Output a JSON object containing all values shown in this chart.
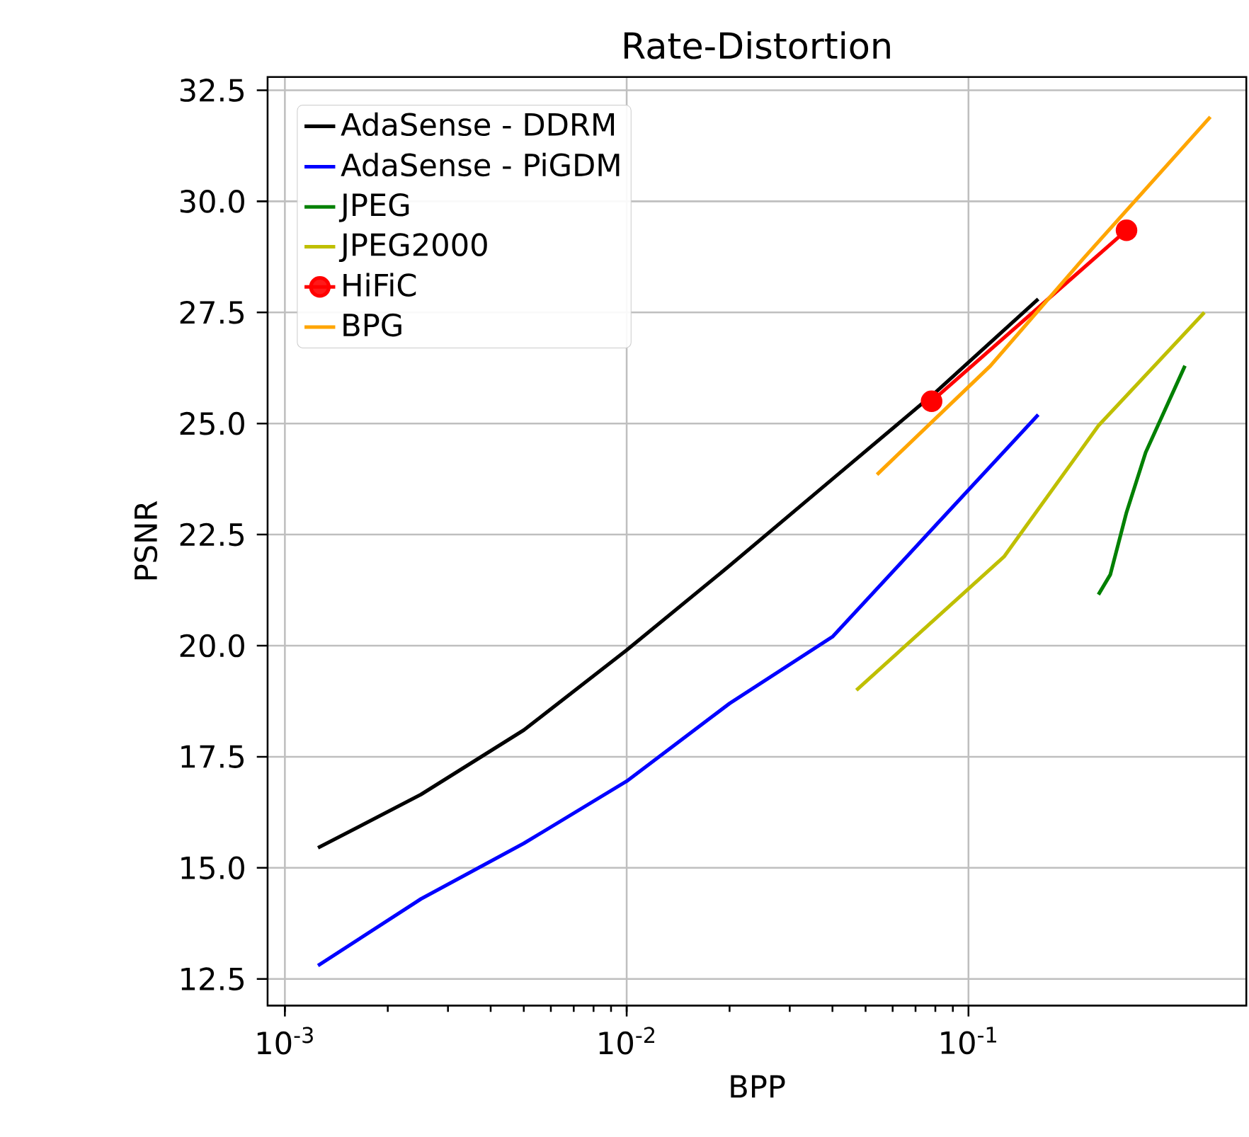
{
  "chart_data": {
    "type": "line",
    "title": "Rate-Distortion",
    "xlabel": "BPP",
    "ylabel": "PSNR",
    "log": "x",
    "grid": true,
    "legend": "top left",
    "line_style": "solid",
    "xlim": [
      0.00089,
      0.65
    ],
    "ylim": [
      11.9,
      32.8
    ],
    "xticks": [
      {
        "value": 0.001,
        "label": "10$^{-3}$"
      },
      {
        "value": 0.01,
        "label": "10$^{-2}$"
      },
      {
        "value": 0.1,
        "label": "10$^{-1}$"
      }
    ],
    "yticks": [
      12.5,
      {
        "value": 15,
        "label": "15.0"
      },
      17.5,
      {
        "value": 20,
        "label": "20.0"
      },
      22.5,
      {
        "value": 25,
        "label": "25.0"
      },
      27.5,
      {
        "value": 30,
        "label": "30.0"
      },
      32.5
    ],
    "series": [
      {
        "name": "AdaSense - DDRM",
        "color": "#000000",
        "x": [
          0.00125,
          0.0025,
          0.005,
          0.01,
          0.02,
          0.04,
          0.08,
          0.16
        ],
        "values": [
          15.45,
          16.65,
          18.1,
          19.9,
          21.8,
          23.75,
          25.7,
          27.8
        ]
      },
      {
        "name": "AdaSense - PiGDM",
        "color": "#0000ff",
        "x": [
          0.00125,
          0.0025,
          0.005,
          0.01,
          0.02,
          0.04,
          0.08,
          0.16
        ],
        "values": [
          12.8,
          14.3,
          15.55,
          16.95,
          18.7,
          20.2,
          22.7,
          25.2
        ]
      },
      {
        "name": "JPEG",
        "color": "#008000",
        "x": [
          0.24,
          0.26,
          0.29,
          0.33,
          0.43
        ],
        "values": [
          21.15,
          21.6,
          23.0,
          24.35,
          26.3
        ]
      },
      {
        "name": "JPEG2000",
        "color": "#bfbf00",
        "x": [
          0.047,
          0.127,
          0.24,
          0.49
        ],
        "values": [
          19.0,
          22.0,
          24.95,
          27.5
        ]
      },
      {
        "name": "HiFiC",
        "color": "#ff0000",
        "marker": "circle",
        "x": [
          0.078,
          0.29
        ],
        "values": [
          25.5,
          29.35
        ]
      },
      {
        "name": "BPG",
        "color": "#ffa500",
        "x": [
          0.054,
          0.116,
          0.219,
          0.51
        ],
        "values": [
          23.85,
          26.3,
          28.75,
          31.9
        ]
      }
    ]
  }
}
